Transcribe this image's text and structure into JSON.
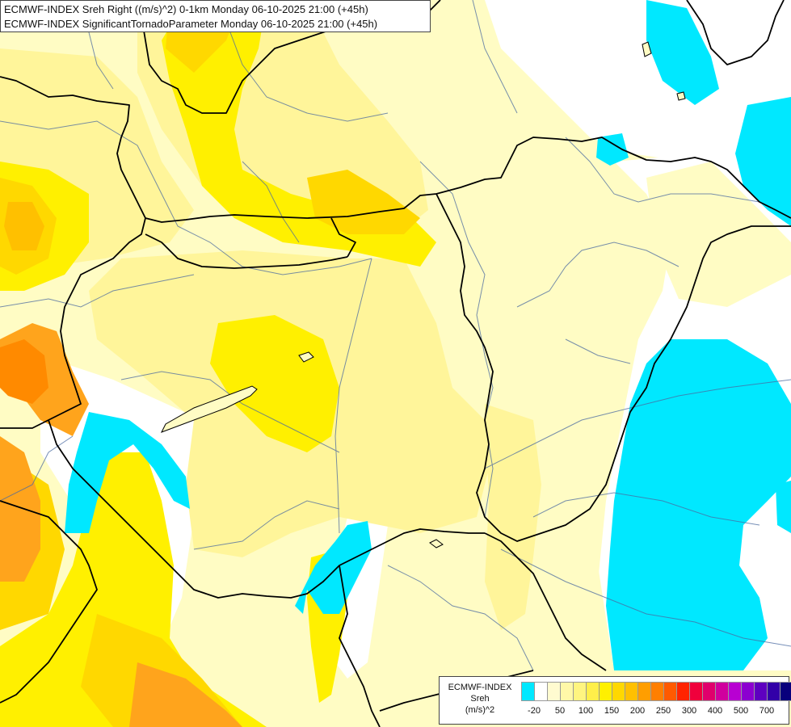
{
  "header": {
    "line1": "ECMWF-INDEX Sreh Right ((m/s)^2) 0-1km Monday 06-10-2025 21:00 (+45h)",
    "line2": "ECMWF-INDEX SignificantTornadoParameter Monday 06-10-2025 21:00 (+45h)"
  },
  "legend": {
    "title_lines": [
      "ECMWF-INDEX",
      "Sreh",
      "(m/s)^2"
    ],
    "colors": [
      "#00e8ff",
      "#ffffff",
      "#fffbd0",
      "#fff8a8",
      "#fff580",
      "#ffef4a",
      "#fff000",
      "#ffd800",
      "#ffc000",
      "#ff9e00",
      "#ff7f00",
      "#ff5a00",
      "#ff2400",
      "#f0003c",
      "#e0006c",
      "#d0009e",
      "#b800d2",
      "#8c00d0",
      "#5e00c0",
      "#3200a8",
      "#08007c"
    ],
    "ticks": [
      "-20",
      "50",
      "100",
      "150",
      "200",
      "250",
      "300",
      "400",
      "500",
      "700"
    ],
    "tick_index": [
      1,
      3,
      5,
      7,
      9,
      11,
      13,
      15,
      17,
      19
    ]
  },
  "map": {
    "colors": {
      "cyan": "#00e8ff",
      "white": "#ffffff",
      "pale_yellow": "#fffcc4",
      "light_yellow": "#fff59a",
      "yellow": "#fff000",
      "gold": "#ffd800",
      "orange": "#ffa41c",
      "dark_orange": "#ff8a00",
      "border": "#000000",
      "river": "#4a6aa0"
    }
  }
}
